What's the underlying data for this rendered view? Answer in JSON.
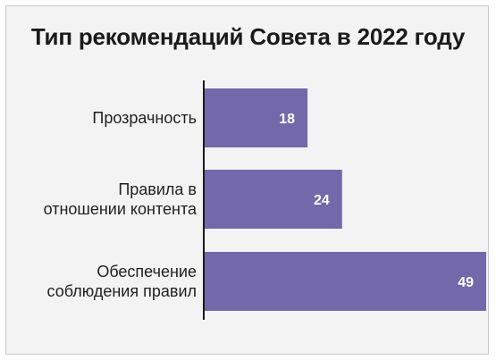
{
  "chart_data": {
    "type": "bar",
    "orientation": "horizontal",
    "title": "Тип рекомендаций Совета в 2022 году",
    "categories": [
      [
        "Прозрачность"
      ],
      [
        "Правила в",
        "отношении контента"
      ],
      [
        "Обеспечение",
        "соблюдения правил"
      ]
    ],
    "values": [
      18,
      24,
      49
    ],
    "value_labels": [
      "18",
      "24",
      "49"
    ],
    "xlim": [
      0,
      49
    ],
    "grid": false,
    "legend": "none",
    "bar_color": "#7368aa"
  }
}
